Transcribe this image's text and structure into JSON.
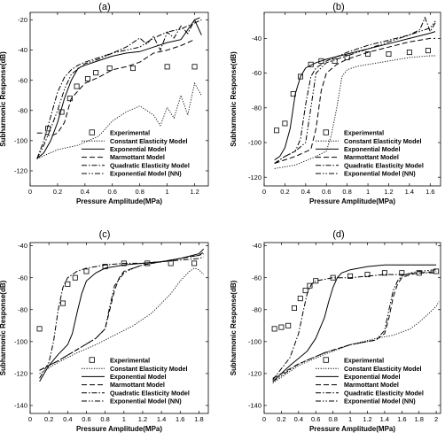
{
  "chart_data": [
    {
      "id": "a",
      "type": "line",
      "title": "(a)",
      "xlabel": "Pressure Amplitude(MPa)",
      "ylabel": "Subharmonic Response(dB)",
      "xlim": [
        0,
        1.3
      ],
      "ylim": [
        -130,
        -15
      ],
      "xticks": [
        "0",
        "0.2",
        "0.4",
        "0.6",
        "0.8",
        "1",
        "1.2"
      ],
      "xtick_values": [
        0,
        0.2,
        0.4,
        0.6,
        0.8,
        1.0,
        1.2
      ],
      "yticks": [
        "-120",
        "-100",
        "-80",
        "-60",
        "-40",
        "-20"
      ],
      "ytick_values": [
        -120,
        -100,
        -80,
        -60,
        -40,
        -20
      ],
      "legend_position": "bottom-center",
      "series": [
        {
          "name": "Experimental",
          "style": "square",
          "x": [
            0.13,
            0.23,
            0.29,
            0.34,
            0.42,
            0.48,
            0.58,
            0.75,
            1.0,
            1.2
          ],
          "y": [
            -92,
            -81,
            -72,
            -64,
            -59,
            -55,
            -52,
            -52,
            -51,
            -51
          ]
        },
        {
          "name": "Constant Elasticity Model",
          "style": "dotted",
          "x": [
            0.05,
            0.2,
            0.35,
            0.5,
            0.6,
            0.7,
            0.8,
            0.9,
            0.95,
            1.0,
            1.05,
            1.1,
            1.15,
            1.2,
            1.25
          ],
          "y": [
            -112,
            -106,
            -103,
            -97,
            -87,
            -81,
            -77,
            -83,
            -90,
            -78,
            -85,
            -70,
            -83,
            -62,
            -70
          ]
        },
        {
          "name": "Exponential Model",
          "style": "solid",
          "x": [
            0.05,
            0.1,
            0.15,
            0.2,
            0.25,
            0.3,
            0.35,
            0.4,
            0.5,
            0.6,
            0.7,
            0.8,
            0.9,
            1.0,
            1.1,
            1.2,
            1.25
          ],
          "y": [
            -112,
            -108,
            -100,
            -88,
            -72,
            -60,
            -52,
            -50,
            -47,
            -44,
            -42,
            -41,
            -38,
            -35,
            -33,
            -20,
            -30
          ]
        },
        {
          "name": "Marmottant Model",
          "style": "dashed",
          "x": [
            0.05,
            0.1,
            0.15,
            0.2,
            0.25,
            0.3,
            0.4,
            0.5,
            0.6,
            0.7,
            0.8,
            0.9,
            1.0,
            1.1,
            1.2
          ],
          "y": [
            -95,
            -95,
            -97,
            -95,
            -88,
            -72,
            -62,
            -58,
            -53,
            -51,
            -48,
            -42,
            -40,
            -37,
            -33
          ]
        },
        {
          "name": "Quadratic Elasticity Model",
          "style": "dashdot",
          "x": [
            0.05,
            0.1,
            0.15,
            0.2,
            0.25,
            0.3,
            0.35,
            0.4,
            0.5,
            0.6,
            0.7,
            0.8,
            0.85,
            0.9,
            0.95,
            1.0,
            1.05,
            1.1,
            1.15,
            1.2,
            1.25
          ],
          "y": [
            -112,
            -100,
            -84,
            -68,
            -58,
            -53,
            -50,
            -48,
            -45,
            -42,
            -38,
            -32,
            -36,
            -31,
            -40,
            -28,
            -32,
            -24,
            -29,
            -20,
            -18
          ]
        },
        {
          "name": "Exponential Model (NN)",
          "style": "dashdotdot",
          "x": [
            0.05,
            0.1,
            0.15,
            0.2,
            0.25,
            0.3,
            0.4,
            0.5,
            0.6,
            0.7,
            0.8,
            0.9,
            1.0,
            1.1,
            1.2,
            1.25
          ],
          "y": [
            -112,
            -103,
            -92,
            -80,
            -66,
            -56,
            -49,
            -46,
            -42,
            -40,
            -38,
            -32,
            -28,
            -26,
            -22,
            -20
          ]
        }
      ]
    },
    {
      "id": "b",
      "type": "line",
      "title": "(b)",
      "xlabel": "Pressure Amplitude(MPa)",
      "ylabel": "Subharmonic Response(dB)",
      "xlim": [
        0,
        1.7
      ],
      "ylim": [
        -125,
        -25
      ],
      "xticks": [
        "0",
        "0.2",
        "0.4",
        "0.6",
        "0.8",
        "1",
        "1.2",
        "1.4",
        "1.6"
      ],
      "xtick_values": [
        0,
        0.2,
        0.4,
        0.6,
        0.8,
        1.0,
        1.2,
        1.4,
        1.6
      ],
      "yticks": [
        "-120",
        "-100",
        "-80",
        "-60",
        "-40"
      ],
      "ytick_values": [
        -120,
        -100,
        -80,
        -60,
        -40
      ],
      "legend_position": "bottom-center",
      "series": [
        {
          "name": "Experimental",
          "style": "square",
          "x": [
            0.12,
            0.2,
            0.28,
            0.35,
            0.45,
            0.55,
            0.68,
            0.8,
            1.0,
            1.2,
            1.4,
            1.58
          ],
          "y": [
            -93,
            -89,
            -72,
            -62,
            -55,
            -53,
            -53,
            -51,
            -49,
            -49,
            -48,
            -47
          ]
        },
        {
          "name": "Constant Elasticity Model",
          "style": "dotted",
          "x": [
            0.1,
            0.3,
            0.5,
            0.6,
            0.65,
            0.7,
            0.75,
            0.8,
            0.9,
            1.0,
            1.2,
            1.4,
            1.6,
            1.65
          ],
          "y": [
            -115,
            -113,
            -108,
            -105,
            -95,
            -80,
            -62,
            -58,
            -56,
            -55,
            -53,
            -51,
            -50,
            -50
          ]
        },
        {
          "name": "Exponential Model",
          "style": "solid",
          "x": [
            0.1,
            0.15,
            0.2,
            0.25,
            0.3,
            0.35,
            0.4,
            0.5,
            0.6,
            0.8,
            1.0,
            1.2,
            1.4,
            1.6,
            1.65
          ],
          "y": [
            -110,
            -108,
            -103,
            -92,
            -72,
            -62,
            -57,
            -54,
            -52,
            -49,
            -46,
            -43,
            -40,
            -37,
            -36
          ]
        },
        {
          "name": "Marmottant Model",
          "style": "dashed",
          "x": [
            0.1,
            0.3,
            0.45,
            0.5,
            0.55,
            0.6,
            0.7,
            0.8,
            1.0,
            1.2,
            1.4,
            1.6,
            1.65
          ],
          "y": [
            -112,
            -108,
            -104,
            -92,
            -70,
            -60,
            -55,
            -52,
            -48,
            -45,
            -42,
            -40,
            -40
          ]
        },
        {
          "name": "Quadratic Elasticity Model",
          "style": "dashdot",
          "x": [
            0.1,
            0.2,
            0.3,
            0.35,
            0.4,
            0.45,
            0.5,
            0.6,
            0.8,
            1.0,
            1.2,
            1.4,
            1.5,
            1.55,
            1.6,
            1.65
          ],
          "y": [
            -112,
            -108,
            -105,
            -98,
            -78,
            -62,
            -57,
            -53,
            -48,
            -44,
            -41,
            -38,
            -35,
            -28,
            -36,
            -31
          ]
        },
        {
          "name": "Exponential Model (NN)",
          "style": "dashdotdot",
          "x": [
            0.1,
            0.2,
            0.3,
            0.4,
            0.45,
            0.5,
            0.6,
            0.8,
            1.0,
            1.2,
            1.4,
            1.6,
            1.65
          ],
          "y": [
            -112,
            -108,
            -105,
            -100,
            -80,
            -60,
            -54,
            -50,
            -46,
            -42,
            -38,
            -34,
            -30
          ]
        }
      ]
    },
    {
      "id": "c",
      "type": "line",
      "title": "(c)",
      "xlabel": "Pressure Amplitude(MPa)",
      "ylabel": "Subharmonic Response(dB)",
      "xlim": [
        0,
        1.9
      ],
      "ylim": [
        -145,
        -38
      ],
      "xticks": [
        "0",
        "0.2",
        "0.4",
        "0.6",
        "0.8",
        "1",
        "1.2",
        "1.4",
        "1.6",
        "1.8"
      ],
      "xtick_values": [
        0,
        0.2,
        0.4,
        0.6,
        0.8,
        1.0,
        1.2,
        1.4,
        1.6,
        1.8
      ],
      "yticks": [
        "-140",
        "-120",
        "-100",
        "-80",
        "-60",
        "-40"
      ],
      "ytick_values": [
        -140,
        -120,
        -100,
        -80,
        -60,
        -40
      ],
      "legend_position": "bottom-center",
      "series": [
        {
          "name": "Experimental",
          "style": "square",
          "x": [
            0.1,
            0.35,
            0.4,
            0.48,
            0.6,
            0.8,
            1.0,
            1.25,
            1.5,
            1.75
          ],
          "y": [
            -92,
            -76,
            -64,
            -60,
            -56,
            -53,
            -51,
            -51,
            -51,
            -51
          ]
        },
        {
          "name": "Constant Elasticity Model",
          "style": "dotted",
          "x": [
            0.1,
            0.3,
            0.5,
            0.7,
            0.9,
            1.1,
            1.3,
            1.5,
            1.6,
            1.7,
            1.75,
            1.8,
            1.85
          ],
          "y": [
            -120,
            -113,
            -107,
            -102,
            -96,
            -90,
            -82,
            -70,
            -62,
            -56,
            -54,
            -55,
            -58
          ]
        },
        {
          "name": "Exponential Model",
          "style": "solid",
          "x": [
            0.1,
            0.2,
            0.3,
            0.4,
            0.45,
            0.5,
            0.55,
            0.6,
            0.7,
            0.8,
            1.0,
            1.2,
            1.4,
            1.6,
            1.8,
            1.85
          ],
          "y": [
            -125,
            -115,
            -108,
            -102,
            -95,
            -82,
            -70,
            -62,
            -57,
            -54,
            -52,
            -51,
            -50,
            -48,
            -45,
            -42
          ]
        },
        {
          "name": "Marmottant Model",
          "style": "dashed",
          "x": [
            0.1,
            0.3,
            0.5,
            0.7,
            0.8,
            0.85,
            0.9,
            0.95,
            1.0,
            1.1,
            1.2,
            1.4,
            1.6,
            1.8,
            1.85
          ],
          "y": [
            -118,
            -112,
            -105,
            -98,
            -92,
            -80,
            -68,
            -60,
            -56,
            -54,
            -52,
            -50,
            -48,
            -46,
            -44
          ]
        },
        {
          "name": "Quadratic Elasticity Model",
          "style": "dashdot",
          "x": [
            0.1,
            0.2,
            0.25,
            0.3,
            0.35,
            0.4,
            0.5,
            0.6,
            0.8,
            1.0,
            1.2,
            1.4,
            1.6,
            1.8,
            1.85
          ],
          "y": [
            -123,
            -113,
            -100,
            -80,
            -66,
            -60,
            -56,
            -54,
            -52,
            -51,
            -51,
            -50,
            -49,
            -48,
            -47
          ]
        },
        {
          "name": "Exponential Model (NN)",
          "style": "dashdotdot",
          "x": [
            0.1,
            0.3,
            0.5,
            0.7,
            0.8,
            0.85,
            0.9,
            1.0,
            1.1,
            1.2,
            1.4,
            1.6,
            1.8,
            1.85
          ],
          "y": [
            -118,
            -112,
            -105,
            -98,
            -92,
            -78,
            -65,
            -57,
            -54,
            -52,
            -50,
            -48,
            -46,
            -45
          ]
        }
      ]
    },
    {
      "id": "d",
      "type": "line",
      "title": "(d)",
      "xlabel": "Pressure Amplitude(MPa)",
      "ylabel": "Subharmonic Response(dB)",
      "xlim": [
        0,
        2.05
      ],
      "ylim": [
        -145,
        -38
      ],
      "xticks": [
        "0",
        "0.2",
        "0.4",
        "0.6",
        "0.8",
        "1",
        "1.2",
        "1.4",
        "1.6",
        "1.8",
        "2"
      ],
      "xtick_values": [
        0,
        0.2,
        0.4,
        0.6,
        0.8,
        1.0,
        1.2,
        1.4,
        1.6,
        1.8,
        2.0
      ],
      "yticks": [
        "-140",
        "-120",
        "-100",
        "-80",
        "-60",
        "-40"
      ],
      "ytick_values": [
        -140,
        -120,
        -100,
        -80,
        -60,
        -40
      ],
      "legend_position": "bottom-center",
      "series": [
        {
          "name": "Experimental",
          "style": "square",
          "x": [
            0.12,
            0.2,
            0.28,
            0.35,
            0.42,
            0.48,
            0.53,
            0.6,
            0.8,
            1.0,
            1.2,
            1.4,
            1.6,
            1.8,
            2.0
          ],
          "y": [
            -92,
            -91,
            -90,
            -79,
            -73,
            -68,
            -65,
            -62,
            -60,
            -59,
            -58,
            -57,
            -57,
            -57,
            -56
          ]
        },
        {
          "name": "Constant Elasticity Model",
          "style": "dotted",
          "x": [
            0.1,
            0.4,
            0.7,
            1.0,
            1.3,
            1.5,
            1.7,
            1.8,
            1.9,
            2.0,
            2.03
          ],
          "y": [
            -126,
            -115,
            -108,
            -102,
            -98,
            -96,
            -92,
            -88,
            -83,
            -78,
            -75
          ]
        },
        {
          "name": "Exponential Model",
          "style": "solid",
          "x": [
            0.1,
            0.3,
            0.5,
            0.6,
            0.7,
            0.75,
            0.8,
            0.85,
            0.9,
            1.0,
            1.2,
            1.4,
            1.6,
            1.8,
            2.0
          ],
          "y": [
            -125,
            -115,
            -106,
            -98,
            -85,
            -75,
            -66,
            -60,
            -57,
            -55,
            -53,
            -52,
            -52,
            -52,
            -52
          ]
        },
        {
          "name": "Marmottant Model",
          "style": "dashed",
          "x": [
            0.1,
            0.4,
            0.7,
            1.0,
            1.3,
            1.4,
            1.45,
            1.5,
            1.55,
            1.6,
            1.7,
            1.8,
            2.0
          ],
          "y": [
            -123,
            -114,
            -107,
            -102,
            -99,
            -95,
            -85,
            -72,
            -64,
            -60,
            -58,
            -57,
            -56
          ]
        },
        {
          "name": "Quadratic Elasticity Model",
          "style": "dashdot",
          "x": [
            0.1,
            0.3,
            0.4,
            0.45,
            0.5,
            0.55,
            0.6,
            0.7,
            0.8,
            1.0,
            1.2,
            1.4,
            1.6,
            1.8,
            2.0
          ],
          "y": [
            -124,
            -110,
            -95,
            -82,
            -70,
            -64,
            -62,
            -61,
            -60,
            -60,
            -59,
            -58,
            -58,
            -57,
            -57
          ]
        },
        {
          "name": "Exponential Model (NN)",
          "style": "dashdotdot",
          "x": [
            0.1,
            0.4,
            0.7,
            1.0,
            1.3,
            1.4,
            1.45,
            1.5,
            1.55,
            1.6,
            1.7,
            1.8,
            2.0
          ],
          "y": [
            -125,
            -114,
            -107,
            -102,
            -99,
            -93,
            -80,
            -68,
            -62,
            -59,
            -57,
            -56,
            -55
          ]
        }
      ]
    }
  ]
}
